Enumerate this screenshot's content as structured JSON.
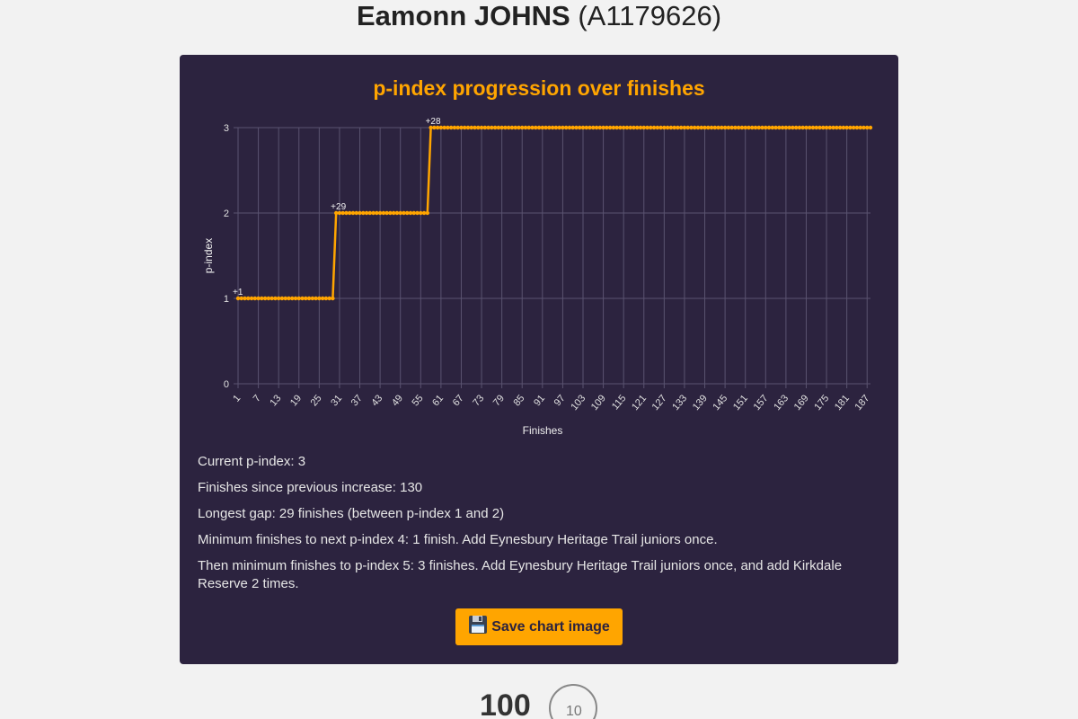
{
  "header": {
    "name": "Eamonn JOHNS",
    "id": "(A1179626)"
  },
  "chart_data": {
    "type": "line",
    "title": "p-index progression over finishes",
    "xlabel": "Finishes",
    "ylabel": "p-index",
    "ylim": [
      0,
      3
    ],
    "yticks": [
      0,
      1,
      2,
      3
    ],
    "x_range": [
      1,
      188
    ],
    "x_tick_step": 6,
    "steps": [
      {
        "from_finish": 1,
        "to_finish": 29,
        "value": 1,
        "annotation": "+1"
      },
      {
        "from_finish": 30,
        "to_finish": 57,
        "value": 2,
        "annotation": "+29"
      },
      {
        "from_finish": 58,
        "to_finish": 188,
        "value": 3,
        "annotation": "+28"
      }
    ],
    "color": "#ffa500",
    "grid": true
  },
  "stats": [
    "Current p-index: 3",
    "Finishes since previous increase: 130",
    "Longest gap: 29 finishes (between p-index 1 and 2)",
    "Minimum finishes to next p-index 4: 1 finish. Add Eynesbury Heritage Trail juniors once.",
    "Then minimum finishes to p-index 5: 3 finishes. Add Eynesbury Heritage Trail juniors once, and add Kirkdale Reserve 2 times."
  ],
  "save_button": {
    "icon": "floppy-disk-icon",
    "label": "Save chart image"
  },
  "footer": {
    "badge1": "100",
    "badge2": "10"
  }
}
